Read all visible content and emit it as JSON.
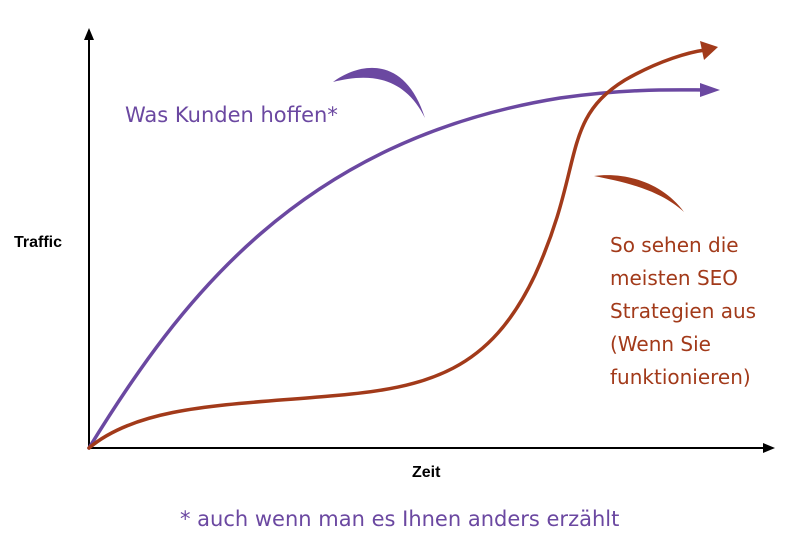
{
  "axes": {
    "y_label": "Traffic",
    "x_label": "Zeit"
  },
  "hoped": {
    "label": "Was Kunden hoffen*",
    "color": "#6b48a1"
  },
  "reality": {
    "lines": [
      "So sehen die",
      "meisten SEO",
      "Strategien aus",
      "(Wenn Sie",
      "funktionieren)"
    ],
    "color": "#a23a1a"
  },
  "footnote": "* auch wenn man es Ihnen anders erzählt"
}
